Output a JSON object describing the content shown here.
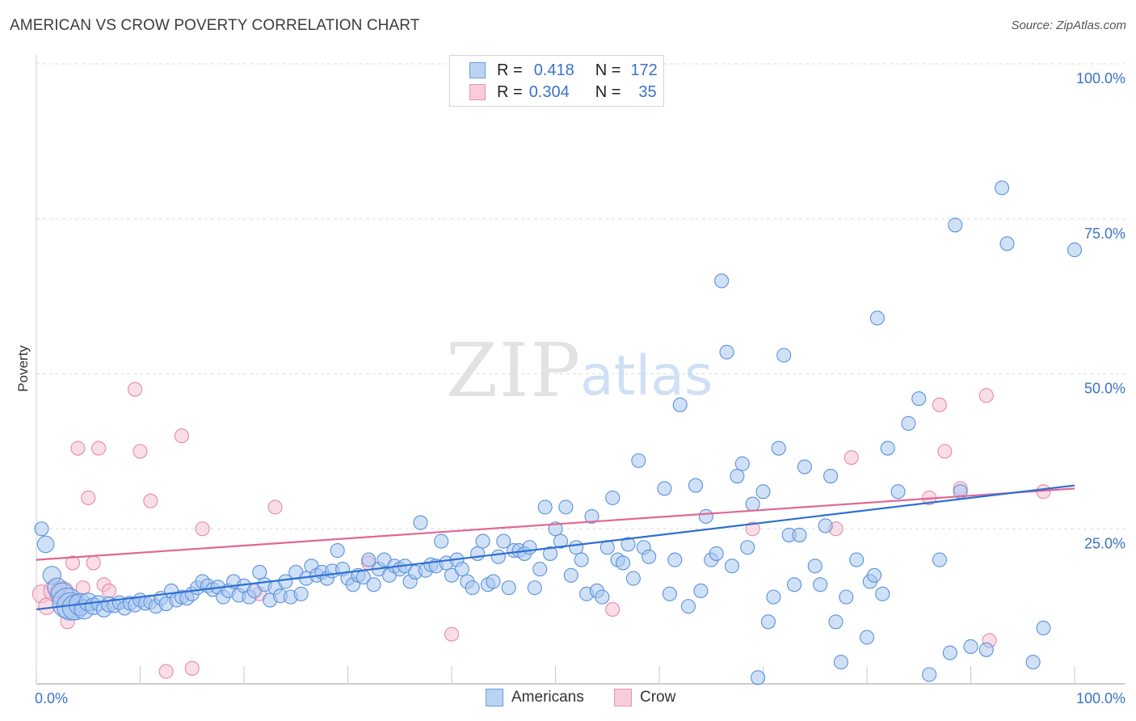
{
  "title": "AMERICAN VS CROW POVERTY CORRELATION CHART",
  "source": "Source: ZipAtlas.com",
  "watermark": {
    "zip": "ZIP",
    "atlas": "atlas"
  },
  "legend": {
    "rows": [
      {
        "r_label": "R =",
        "r_value": "0.418",
        "n_label": "N =",
        "n_value": "172"
      },
      {
        "r_label": "R =",
        "r_value": "0.304",
        "n_label": "N =",
        "n_value": "35"
      }
    ]
  },
  "bottom_legend": {
    "americans": "Americans",
    "crow": "Crow"
  },
  "colors": {
    "americans_fill": "#a9c8f0",
    "americans_stroke": "#5b91db",
    "americans_line": "#2f6fd0",
    "crow_fill": "#f6c3d3",
    "crow_stroke": "#e58aa8",
    "crow_line": "#e06795",
    "axis_text": "#3b72c9",
    "grid": "#dddddd"
  },
  "chart_data": {
    "type": "scatter",
    "title": "AMERICAN VS CROW POVERTY CORRELATION CHART",
    "xlabel": "",
    "ylabel": "Poverty",
    "xlim": [
      0,
      100
    ],
    "ylim": [
      0,
      100
    ],
    "x_tick_labels": [
      "0.0%",
      "100.0%"
    ],
    "y_tick_labels": [
      "25.0%",
      "50.0%",
      "75.0%",
      "100.0%"
    ],
    "series": [
      {
        "name": "Americans",
        "trend": {
          "x": [
            0,
            100
          ],
          "y": [
            12.0,
            32.0
          ]
        },
        "points": [
          [
            0.5,
            25.0,
            1
          ],
          [
            0.9,
            22.5,
            1.2
          ],
          [
            1.5,
            17.5,
            1.3
          ],
          [
            2.0,
            15.5,
            1.4
          ],
          [
            2.5,
            14.5,
            1.6
          ],
          [
            3.0,
            13.0,
            2.2
          ],
          [
            3.3,
            12.5,
            2.0
          ],
          [
            3.7,
            12.3,
            1.8
          ],
          [
            4.2,
            12.8,
            1.6
          ],
          [
            4.6,
            12.0,
            1.4
          ],
          [
            5.0,
            13.2,
            1.3
          ],
          [
            5.5,
            12.5,
            1.2
          ],
          [
            6.0,
            13.0,
            1.1
          ],
          [
            6.5,
            12.0,
            1.1
          ],
          [
            7.0,
            12.8,
            1.1
          ],
          [
            7.5,
            12.6,
            1
          ],
          [
            8.0,
            13.1,
            1
          ],
          [
            8.5,
            12.2,
            1
          ],
          [
            9.0,
            13.0,
            1
          ],
          [
            9.5,
            12.7,
            1
          ],
          [
            10.0,
            13.5,
            1
          ],
          [
            10.5,
            13.0,
            1
          ],
          [
            11.0,
            13.2,
            1
          ],
          [
            11.5,
            12.5,
            1
          ],
          [
            12.0,
            13.8,
            1
          ],
          [
            12.5,
            12.9,
            1
          ],
          [
            13.0,
            15.0,
            1
          ],
          [
            13.5,
            13.5,
            1
          ],
          [
            14.0,
            14.0,
            1
          ],
          [
            14.5,
            13.8,
            1
          ],
          [
            15.0,
            14.5,
            1
          ],
          [
            15.5,
            15.5,
            1
          ],
          [
            16.0,
            16.5,
            1
          ],
          [
            16.5,
            15.8,
            1
          ],
          [
            17.0,
            15.2,
            1
          ],
          [
            17.5,
            15.6,
            1
          ],
          [
            18.0,
            14.0,
            1
          ],
          [
            18.5,
            15.0,
            1
          ],
          [
            19.0,
            16.5,
            1
          ],
          [
            19.5,
            14.3,
            1
          ],
          [
            20.0,
            15.8,
            1
          ],
          [
            20.5,
            14.0,
            1
          ],
          [
            21.0,
            15.0,
            1
          ],
          [
            21.5,
            18.0,
            1
          ],
          [
            22.0,
            16.0,
            1
          ],
          [
            22.5,
            13.5,
            1
          ],
          [
            23.0,
            15.5,
            1
          ],
          [
            23.5,
            14.2,
            1
          ],
          [
            24.0,
            16.5,
            1
          ],
          [
            24.5,
            14.0,
            1
          ],
          [
            25.0,
            18.0,
            1
          ],
          [
            25.5,
            14.5,
            1
          ],
          [
            26.0,
            17.0,
            1
          ],
          [
            26.5,
            19.0,
            1
          ],
          [
            27.0,
            17.5,
            1
          ],
          [
            27.5,
            18.0,
            1
          ],
          [
            28.0,
            17.0,
            1
          ],
          [
            28.5,
            18.2,
            1
          ],
          [
            29.0,
            21.5,
            1
          ],
          [
            29.5,
            18.5,
            1
          ],
          [
            30.0,
            17.0,
            1
          ],
          [
            30.5,
            16.0,
            1
          ],
          [
            31.0,
            17.5,
            1
          ],
          [
            31.5,
            17.2,
            1
          ],
          [
            32.0,
            20.0,
            1
          ],
          [
            32.5,
            16.0,
            1
          ],
          [
            33.0,
            18.5,
            1
          ],
          [
            33.5,
            20.0,
            1
          ],
          [
            34.0,
            17.5,
            1
          ],
          [
            34.5,
            19.0,
            1
          ],
          [
            35.0,
            18.5,
            1
          ],
          [
            35.5,
            19.0,
            1
          ],
          [
            36.0,
            16.5,
            1
          ],
          [
            36.5,
            18.0,
            1
          ],
          [
            37.0,
            26.0,
            1
          ],
          [
            37.5,
            18.3,
            1
          ],
          [
            38.0,
            19.2,
            1
          ],
          [
            38.5,
            19.0,
            1
          ],
          [
            39.0,
            23.0,
            1
          ],
          [
            39.5,
            19.5,
            1
          ],
          [
            40.0,
            17.5,
            1
          ],
          [
            40.5,
            20.0,
            1
          ],
          [
            41.0,
            18.5,
            1
          ],
          [
            41.5,
            16.5,
            1
          ],
          [
            42.0,
            15.5,
            1
          ],
          [
            42.5,
            21.0,
            1
          ],
          [
            43.0,
            23.0,
            1
          ],
          [
            43.5,
            16.0,
            1
          ],
          [
            44.0,
            16.5,
            1
          ],
          [
            44.5,
            20.5,
            1
          ],
          [
            45.0,
            23.0,
            1
          ],
          [
            45.5,
            15.5,
            1
          ],
          [
            46.0,
            21.5,
            1
          ],
          [
            46.5,
            21.5,
            1
          ],
          [
            47.0,
            21.0,
            1
          ],
          [
            47.5,
            22.0,
            1
          ],
          [
            48.0,
            15.5,
            1
          ],
          [
            48.5,
            18.5,
            1
          ],
          [
            49.0,
            28.5,
            1
          ],
          [
            49.5,
            21.0,
            1
          ],
          [
            50.0,
            25.0,
            1
          ],
          [
            50.5,
            23.0,
            1
          ],
          [
            51.0,
            28.5,
            1
          ],
          [
            51.5,
            17.5,
            1
          ],
          [
            52.0,
            22.0,
            1
          ],
          [
            52.5,
            20.0,
            1
          ],
          [
            53.0,
            14.5,
            1
          ],
          [
            53.5,
            27.0,
            1
          ],
          [
            54.0,
            15.0,
            1
          ],
          [
            54.5,
            14.0,
            1
          ],
          [
            55.0,
            22.0,
            1
          ],
          [
            55.5,
            30.0,
            1
          ],
          [
            56.0,
            20.0,
            1
          ],
          [
            56.5,
            19.5,
            1
          ],
          [
            57.0,
            22.5,
            1
          ],
          [
            57.5,
            17.0,
            1
          ],
          [
            58.0,
            36.0,
            1
          ],
          [
            58.5,
            22.0,
            1
          ],
          [
            59.0,
            20.5,
            1
          ],
          [
            60.5,
            31.5,
            1
          ],
          [
            61.0,
            14.5,
            1
          ],
          [
            61.5,
            20.0,
            1
          ],
          [
            62.0,
            45.0,
            1
          ],
          [
            62.8,
            12.5,
            1
          ],
          [
            63.5,
            32.0,
            1
          ],
          [
            64.0,
            15.0,
            1
          ],
          [
            64.5,
            27.0,
            1
          ],
          [
            65.0,
            20.0,
            1
          ],
          [
            65.5,
            21.0,
            1
          ],
          [
            66.0,
            65.0,
            1
          ],
          [
            66.5,
            53.5,
            1
          ],
          [
            67.0,
            19.0,
            1
          ],
          [
            67.5,
            33.5,
            1
          ],
          [
            68.0,
            35.5,
            1
          ],
          [
            68.5,
            22.0,
            1
          ],
          [
            69.0,
            29.0,
            1
          ],
          [
            69.5,
            1.0,
            1
          ],
          [
            70.0,
            31.0,
            1
          ],
          [
            70.5,
            10.0,
            1
          ],
          [
            71.0,
            14.0,
            1
          ],
          [
            71.5,
            38.0,
            1
          ],
          [
            72.0,
            53.0,
            1
          ],
          [
            72.5,
            24.0,
            1
          ],
          [
            73.0,
            16.0,
            1
          ],
          [
            73.5,
            24.0,
            1
          ],
          [
            74.0,
            35.0,
            1
          ],
          [
            75.0,
            19.0,
            1
          ],
          [
            75.5,
            16.0,
            1
          ],
          [
            76.0,
            25.5,
            1
          ],
          [
            76.5,
            33.5,
            1
          ],
          [
            77.0,
            10.0,
            1
          ],
          [
            77.5,
            3.5,
            1
          ],
          [
            78.0,
            14.0,
            1
          ],
          [
            79.0,
            20.0,
            1
          ],
          [
            80.0,
            7.5,
            1
          ],
          [
            80.3,
            16.5,
            1
          ],
          [
            80.7,
            17.5,
            1
          ],
          [
            81.0,
            59.0,
            1
          ],
          [
            81.5,
            14.5,
            1
          ],
          [
            82.0,
            38.0,
            1
          ],
          [
            83.0,
            31.0,
            1
          ],
          [
            84.0,
            42.0,
            1
          ],
          [
            85.0,
            46.0,
            1
          ],
          [
            86.0,
            1.5,
            1
          ],
          [
            87.0,
            20.0,
            1
          ],
          [
            88.0,
            5.0,
            1
          ],
          [
            88.5,
            74.0,
            1
          ],
          [
            89.0,
            31.0,
            1
          ],
          [
            90.0,
            6.0,
            1
          ],
          [
            91.5,
            5.5,
            1
          ],
          [
            93.0,
            80.0,
            1
          ],
          [
            93.5,
            71.0,
            1
          ],
          [
            96.0,
            3.5,
            1
          ],
          [
            97.0,
            9.0,
            1
          ],
          [
            100.0,
            70.0,
            1
          ]
        ]
      },
      {
        "name": "Crow",
        "trend": {
          "x": [
            0,
            100
          ],
          "y": [
            20.0,
            31.5
          ]
        },
        "points": [
          [
            0.5,
            14.5,
            1.3
          ],
          [
            1.0,
            12.5,
            1.2
          ],
          [
            1.7,
            15.0,
            1.5
          ],
          [
            2.5,
            14.5,
            1.8
          ],
          [
            3.0,
            10.0,
            1
          ],
          [
            3.5,
            19.5,
            1
          ],
          [
            4.0,
            38.0,
            1
          ],
          [
            4.5,
            15.5,
            1
          ],
          [
            5.0,
            30.0,
            1
          ],
          [
            5.5,
            19.5,
            1
          ],
          [
            6.0,
            38.0,
            1
          ],
          [
            6.5,
            16.0,
            1
          ],
          [
            7.0,
            15.0,
            1
          ],
          [
            9.5,
            47.5,
            1
          ],
          [
            10.0,
            37.5,
            1
          ],
          [
            11.0,
            29.5,
            1
          ],
          [
            12.5,
            2.0,
            1
          ],
          [
            14.0,
            40.0,
            1
          ],
          [
            15.0,
            2.5,
            1
          ],
          [
            16.0,
            25.0,
            1
          ],
          [
            21.5,
            14.5,
            1
          ],
          [
            23.0,
            28.5,
            1
          ],
          [
            32.0,
            19.5,
            1
          ],
          [
            40.0,
            8.0,
            1
          ],
          [
            55.5,
            12.0,
            1
          ],
          [
            69.0,
            25.0,
            1
          ],
          [
            77.0,
            25.0,
            1
          ],
          [
            78.5,
            36.5,
            1
          ],
          [
            86.0,
            30.0,
            1
          ],
          [
            87.0,
            45.0,
            1
          ],
          [
            87.5,
            37.5,
            1
          ],
          [
            89.0,
            31.5,
            1
          ],
          [
            91.5,
            46.5,
            1
          ],
          [
            91.8,
            7.0,
            1
          ],
          [
            97.0,
            31.0,
            1
          ]
        ]
      }
    ]
  }
}
